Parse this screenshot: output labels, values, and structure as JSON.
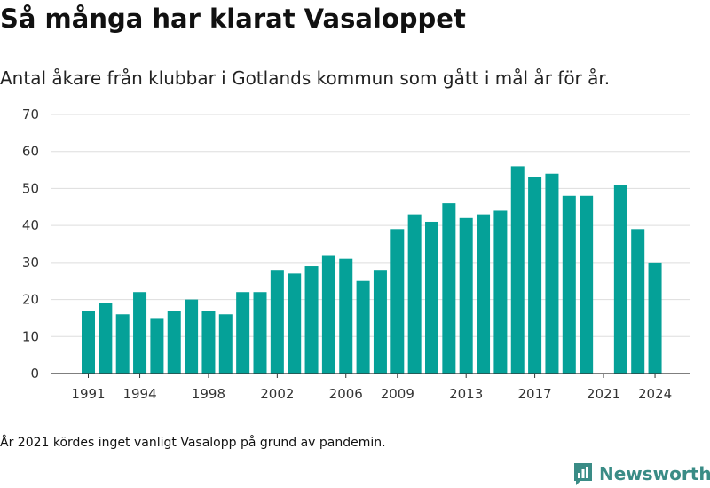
{
  "title": "Så många har klarat Vasaloppet",
  "subtitle": "Antal åkare från klubbar i Gotlands kommun som gått i mål år för år.",
  "footnote": "År 2021 kördes inget vanligt Vasalopp på grund av pandemin.",
  "brand": {
    "name": "Newsworthy",
    "logo_icon": "newsworthy-logo-icon"
  },
  "colors": {
    "bar": "#05a198",
    "grid": "#dddddd",
    "axis": "#333333"
  },
  "chart_data": {
    "type": "bar",
    "title": "Så många har klarat Vasaloppet",
    "subtitle": "Antal åkare från klubbar i Gotlands kommun som gått i mål år för år.",
    "xlabel": "",
    "ylabel": "",
    "ylim": [
      0,
      70
    ],
    "yticks": [
      0,
      10,
      20,
      30,
      40,
      50,
      60,
      70
    ],
    "xticks": [
      1991,
      1994,
      1998,
      2002,
      2006,
      2009,
      2013,
      2017,
      2021,
      2024
    ],
    "grid": true,
    "legend": "none",
    "x": [
      1991,
      1992,
      1993,
      1994,
      1995,
      1996,
      1997,
      1998,
      1999,
      2000,
      2001,
      2002,
      2003,
      2004,
      2005,
      2006,
      2007,
      2008,
      2009,
      2010,
      2011,
      2012,
      2013,
      2014,
      2015,
      2016,
      2017,
      2018,
      2019,
      2020,
      2021,
      2022,
      2023,
      2024
    ],
    "values": [
      17,
      19,
      16,
      22,
      15,
      17,
      20,
      17,
      16,
      22,
      22,
      28,
      27,
      29,
      32,
      31,
      25,
      28,
      39,
      43,
      41,
      46,
      42,
      43,
      44,
      56,
      53,
      54,
      48,
      48,
      null,
      51,
      39,
      30
    ]
  }
}
